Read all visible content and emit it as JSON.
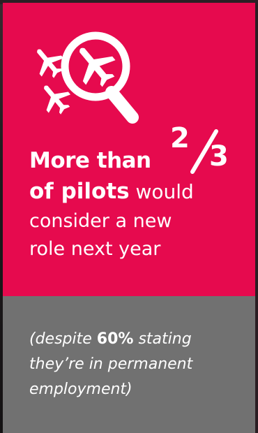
{
  "headline": {
    "line1": "More than",
    "fraction_numerator": "2",
    "fraction_denominator": "3",
    "line2_bold": "of pilots",
    "line2_rest": " would",
    "line3": "consider a new",
    "line4": "role next year"
  },
  "subtext": {
    "line1_start": "(despite ",
    "line1_bold": "60%",
    "line1_end": " stating",
    "line2": "they’re in permanent",
    "line3": "employment)"
  },
  "icons": {
    "main": "magnifier-with-planes-icon",
    "secondary": "airplane-icon"
  },
  "colors": {
    "accent": "#e60a4e",
    "secondary_panel": "#717171",
    "text": "#ffffff"
  }
}
